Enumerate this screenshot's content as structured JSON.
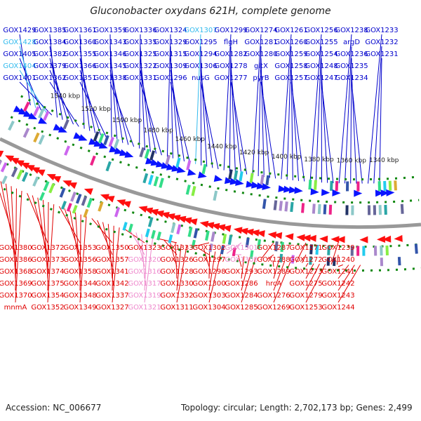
{
  "title": "Gluconobacter oxydans 621H, complete genome",
  "footer": {
    "accession": "Accession: NC_006677",
    "stats": "Topology: circular; Length: 2,702,173 bp; Genes: 2,499"
  },
  "colors": {
    "upper_label": "#0000cc",
    "upper_label_alt": "#33bbee",
    "lower_label": "#e00000",
    "lower_label_alt": "#ee88cc",
    "upper_arrow": "#0a14ff",
    "lower_arrow": "#ff1010",
    "backbone": "#999999",
    "tick": "#118811"
  },
  "ruler": [
    "1540 kbp",
    "1520 kbp",
    "1500 kbp",
    "1480 kbp",
    "1460 kbp",
    "1440 kbp",
    "1420 kbp",
    "1400 kbp",
    "1380 kbp",
    "1360 kbp",
    "1340 kbp"
  ],
  "upper_genes": [
    {
      "label": "GOX1429"
    },
    {
      "label": "GOX1428",
      "alt": true
    },
    {
      "label": "GOX1405"
    },
    {
      "label": "GOX1404",
      "alt": true
    },
    {
      "label": "GOX1401"
    },
    {
      "label": "GOX1385"
    },
    {
      "label": "GOX1384"
    },
    {
      "label": "GOX1382"
    },
    {
      "label": "GOX1379"
    },
    {
      "label": "GOX1362"
    },
    {
      "label": "GOX1361"
    },
    {
      "label": "GOX1360"
    },
    {
      "label": "GOX1355"
    },
    {
      "label": "GOX1366"
    },
    {
      "label": "GOX1351"
    },
    {
      "label": "GOX1359"
    },
    {
      "label": "GOX1343"
    },
    {
      "label": "GOX1346"
    },
    {
      "label": "GOX1345"
    },
    {
      "label": "GOX1338"
    },
    {
      "label": "GOX1336"
    },
    {
      "label": "GOX1335"
    },
    {
      "label": "GOX1325"
    },
    {
      "label": "GOX1322"
    },
    {
      "label": "GOX1331"
    },
    {
      "label": "GOX1324"
    },
    {
      "label": "GOX1329"
    },
    {
      "label": "GOX1315"
    },
    {
      "label": "GOX1309"
    },
    {
      "label": "GOX1296"
    },
    {
      "label": "GOX1307",
      "alt": true
    },
    {
      "label": "GOX1295"
    },
    {
      "label": "GOX1294"
    },
    {
      "label": "GOX1306"
    },
    {
      "label": "nusG"
    },
    {
      "label": "GOX1299"
    },
    {
      "label": "flgH"
    },
    {
      "label": "GOX1282"
    },
    {
      "label": "GOX1278"
    },
    {
      "label": "GOX1277"
    },
    {
      "label": "GOX1274"
    },
    {
      "label": "GOX1281"
    },
    {
      "label": "GOX1280"
    },
    {
      "label": "gltX"
    },
    {
      "label": "pyrB"
    },
    {
      "label": "GOX1261"
    },
    {
      "label": "GOX1260"
    },
    {
      "label": "GOX1259"
    },
    {
      "label": "GOX1258"
    },
    {
      "label": "GOX1257"
    },
    {
      "label": "GOX1256"
    },
    {
      "label": "GOX1255"
    },
    {
      "label": "GOX1254"
    },
    {
      "label": "GOX1248"
    },
    {
      "label": "GOX1247"
    },
    {
      "label": "GOX1238"
    },
    {
      "label": "argD"
    },
    {
      "label": "GOX1236"
    },
    {
      "label": "GOX1235"
    },
    {
      "label": "GOX1234"
    },
    {
      "label": "GOX1233"
    },
    {
      "label": "GOX1232"
    },
    {
      "label": "GOX1231"
    }
  ],
  "lower_genes": [
    {
      "label": "GOX1380"
    },
    {
      "label": "GOX1386"
    },
    {
      "label": "GOX1368"
    },
    {
      "label": "GOX1369"
    },
    {
      "label": "GOX1370"
    },
    {
      "label": "mnmA"
    },
    {
      "label": "GOX1372"
    },
    {
      "label": "GOX1373"
    },
    {
      "label": "GOX1374"
    },
    {
      "label": "GOX1375"
    },
    {
      "label": "GOX1354"
    },
    {
      "label": "GOX1352"
    },
    {
      "label": "GOX1353"
    },
    {
      "label": "GOX1356"
    },
    {
      "label": "GOX1358"
    },
    {
      "label": "GOX1344"
    },
    {
      "label": "GOX1348"
    },
    {
      "label": "GOX1349"
    },
    {
      "label": "GOX1350"
    },
    {
      "label": "GOX1357"
    },
    {
      "label": "GOX1341"
    },
    {
      "label": "GOX1342"
    },
    {
      "label": "GOX1337"
    },
    {
      "label": "GOX1327"
    },
    {
      "label": "GOX1323"
    },
    {
      "label": "GOX1320",
      "alt": true
    },
    {
      "label": "GOX1316",
      "alt": true
    },
    {
      "label": "GOX1317",
      "alt": true
    },
    {
      "label": "GOX1319",
      "alt": true
    },
    {
      "label": "GOX1321",
      "alt": true
    },
    {
      "label": "GOX1333"
    },
    {
      "label": "GOX1326"
    },
    {
      "label": "GOX1328"
    },
    {
      "label": "GOX1330"
    },
    {
      "label": "GOX1332"
    },
    {
      "label": "GOX1311"
    },
    {
      "label": "GOX1302"
    },
    {
      "label": "GOX1297"
    },
    {
      "label": "GOX1298"
    },
    {
      "label": "GOX1300"
    },
    {
      "label": "GOX1303"
    },
    {
      "label": "GOX1304"
    },
    {
      "label": "GOX1301",
      "alt": true
    },
    {
      "label": "GOX1308",
      "alt": true
    },
    {
      "label": "GOX1293"
    },
    {
      "label": "GOX1286"
    },
    {
      "label": "GOX1284"
    },
    {
      "label": "GOX1285"
    },
    {
      "label": "GOX1287"
    },
    {
      "label": "GOX1288"
    },
    {
      "label": "GOX1289"
    },
    {
      "label": "hrcA"
    },
    {
      "label": "GOX1276"
    },
    {
      "label": "GOX1269"
    },
    {
      "label": "GOX1271"
    },
    {
      "label": "GOX1272"
    },
    {
      "label": "GOX1273"
    },
    {
      "label": "GOX1275"
    },
    {
      "label": "GOX1279"
    },
    {
      "label": "GOX1253"
    },
    {
      "label": "GOX1239"
    },
    {
      "label": "GOX1240"
    },
    {
      "label": "GOX1241"
    },
    {
      "label": "GOX1242"
    },
    {
      "label": "GOX1243"
    },
    {
      "label": "GOX1244"
    }
  ]
}
